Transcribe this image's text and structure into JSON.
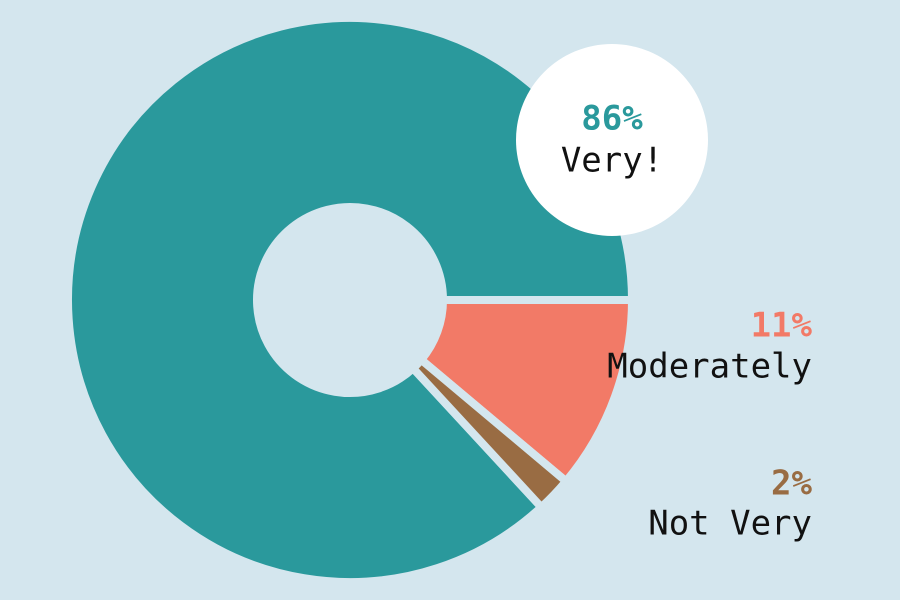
{
  "chart_data": {
    "type": "donut",
    "categories": [
      "Very!",
      "Moderately",
      "Not Very"
    ],
    "values": [
      86,
      11,
      2
    ],
    "value_labels": [
      "86%",
      "11%",
      "2%"
    ],
    "colors": [
      "#2a999c",
      "#f27a67",
      "#996c43"
    ]
  }
}
